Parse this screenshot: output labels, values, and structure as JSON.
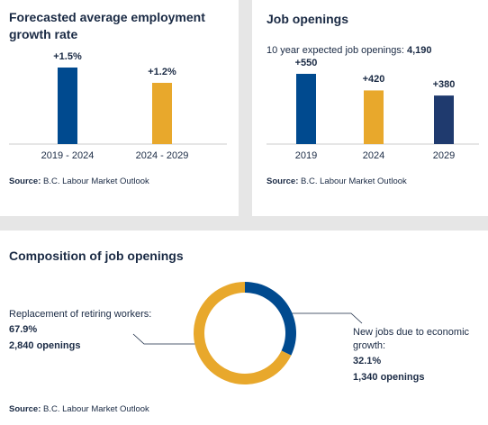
{
  "chart_data": [
    {
      "type": "bar",
      "title": "Forecasted average employment growth rate",
      "categories": [
        "2019 - 2024",
        "2024 - 2029"
      ],
      "values": [
        1.5,
        1.2
      ],
      "value_labels": [
        "+1.5%",
        "+1.2%"
      ],
      "colors": [
        "#004a8f",
        "#e8a82c"
      ],
      "source_label": "Source:",
      "source": "B.C. Labour Market Outlook"
    },
    {
      "type": "bar",
      "title": "Job openings",
      "subtitle": "10 year expected job openings:",
      "total": "4,190",
      "categories": [
        "2019",
        "2024",
        "2029"
      ],
      "values": [
        550,
        420,
        380
      ],
      "value_labels": [
        "+550",
        "+420",
        "+380"
      ],
      "colors": [
        "#004a8f",
        "#e8a82c",
        "#1f3a6e"
      ],
      "source_label": "Source:",
      "source": "B.C. Labour Market Outlook"
    },
    {
      "type": "donut",
      "title": "Composition of job openings",
      "categories": [
        "Replacement of retiring workers:",
        "New jobs due to economic growth:"
      ],
      "values": [
        67.9,
        32.1
      ],
      "value_labels": [
        "67.9%",
        "32.1%"
      ],
      "openings_labels": [
        "2,840 openings",
        "1,340 openings"
      ],
      "colors": [
        "#e8a82c",
        "#004a8f"
      ],
      "source_label": "Source:",
      "source": "B.C. Labour Market Outlook"
    }
  ]
}
